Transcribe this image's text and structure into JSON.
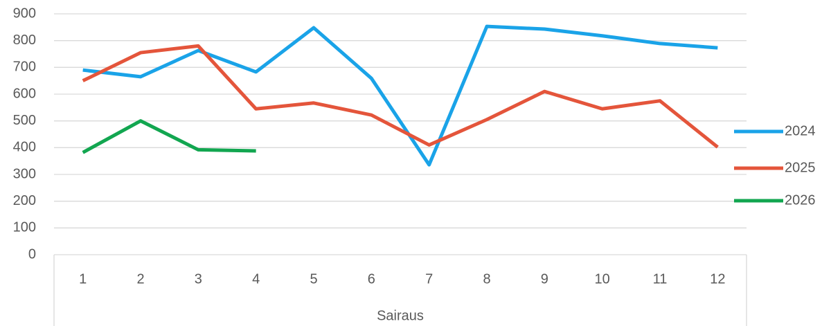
{
  "chart_data": {
    "type": "line",
    "x_label": "Sairaus",
    "categories": [
      1,
      2,
      3,
      4,
      5,
      6,
      7,
      8,
      9,
      10,
      11,
      12
    ],
    "series": [
      {
        "name": "2024",
        "color": "#1aa3e8",
        "values": [
          690,
          665,
          763,
          683,
          848,
          659,
          336,
          853,
          843,
          818,
          789,
          773
        ]
      },
      {
        "name": "2025",
        "color": "#e4553b",
        "values": [
          650,
          755,
          780,
          545,
          567,
          522,
          410,
          505,
          610,
          545,
          575,
          402
        ]
      },
      {
        "name": "2026",
        "color": "#12a650",
        "values": [
          382,
          500,
          392,
          388,
          null,
          null,
          null,
          null,
          null,
          null,
          null,
          null
        ]
      }
    ],
    "ylim": [
      0,
      900
    ],
    "yticks": [
      0,
      100,
      200,
      300,
      400,
      500,
      600,
      700,
      800,
      900
    ],
    "grid": true,
    "legend": "right"
  }
}
